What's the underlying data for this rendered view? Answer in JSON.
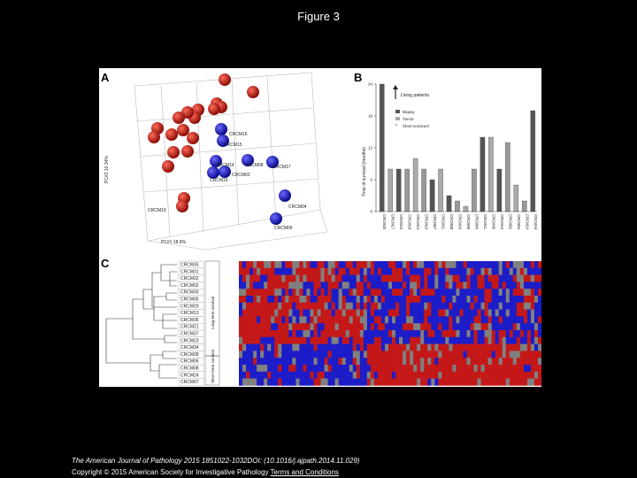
{
  "figure_title": "Figure 3",
  "panels": {
    "a": {
      "letter": "A",
      "axis_y": "PC#2 10.34%",
      "axis_x": "PC#1 18.8%",
      "cluster_labels": [
        "CRCM16",
        "CRCM15",
        "CRCM14",
        "CRCM08",
        "CRCM17",
        "CRCM03",
        "CRCM16",
        "CRCM04",
        "CRCM09",
        "CRCM19"
      ]
    },
    "b": {
      "letter": "B",
      "legend": {
        "living": "Living patients",
        "biopsy": "Biopsy",
        "tumor": "Tumor",
        "short": "Short survivors"
      },
      "y_label": "Time of survival (months)",
      "y_ticks": [
        "0",
        "6",
        "12",
        "18",
        "24"
      ]
    },
    "c": {
      "letter": "C",
      "rows": [
        "CRCM35",
        "CRCM31",
        "CRCM32",
        "CRCM02",
        "CRCM30",
        "CRCM05",
        "CRCM29",
        "CRCM13",
        "CRCM36",
        "CRCM21",
        "CRCM37",
        "CRCM23",
        "CRCM34",
        "CRCM28",
        "CRCM06",
        "CRCM08",
        "CRCM24",
        "CRCM07"
      ],
      "group_long": "Long-term survival",
      "group_short": "Short-term survival"
    }
  },
  "chart_data": {
    "type": "bar",
    "categories": [
      "CRCM20",
      "CRCM17",
      "CRCM15",
      "CRCM18",
      "CRCM13",
      "CRCM19",
      "CRCM07",
      "CRCM21",
      "CRCM08",
      "CRCM10",
      "CRCM09",
      "CRCM06",
      "CRCM11",
      "CRCM30",
      "CRCM16",
      "CRCM02",
      "CRCM04",
      "CRCM14",
      "CRCM19"
    ],
    "values": [
      24,
      8,
      8,
      8,
      10,
      8,
      6,
      8,
      3,
      2,
      1,
      8,
      14,
      14,
      8,
      13,
      5,
      2,
      19
    ],
    "ylim": [
      0,
      24
    ],
    "ylabel": "Time of survival (months)"
  },
  "footer": {
    "citation": "The American Journal of Pathology 2015 1851022-1032DOI: (10.1016/j.ajpath.2014.11.029)",
    "copyright": "Copyright © 2015 American Society for Investigative Pathology ",
    "terms_link": "Terms and Conditions"
  }
}
